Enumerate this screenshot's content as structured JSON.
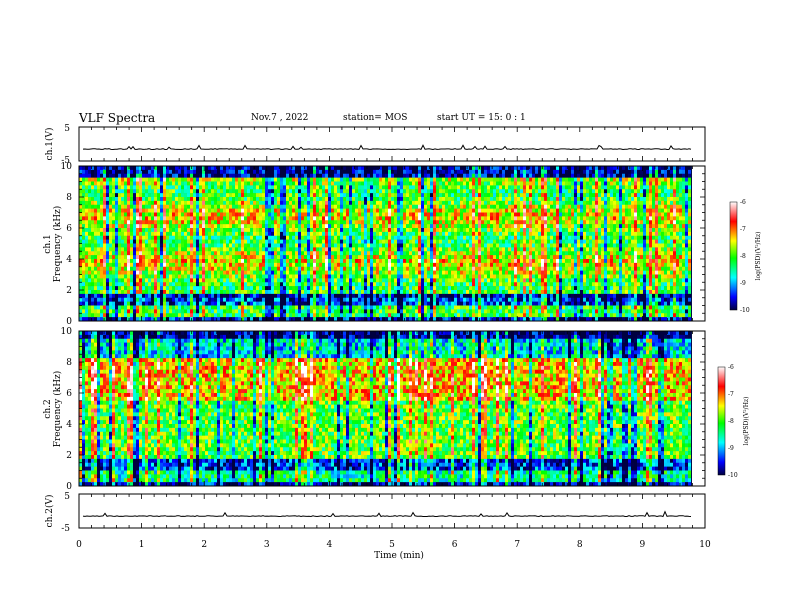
{
  "header": {
    "title": "VLF Spectra",
    "date": "Nov.7 , 2022",
    "station": "station= MOS",
    "start": "start UT =  15: 0 : 1"
  },
  "chart_data": [
    {
      "type": "line",
      "panel": "ch1-waveform",
      "ylabel": "ch.1(V)",
      "ylim": [
        -5,
        5
      ],
      "yticks": [
        "5",
        "-5"
      ],
      "xlim": [
        0,
        10
      ],
      "series": [
        {
          "values_approx": "flat trace near -1.5 V with small spikes"
        }
      ]
    },
    {
      "type": "heatmap",
      "panel": "ch1-spectrogram",
      "ylabel": "ch.1\nFrequency (kHz)",
      "ylabel_lines": [
        "ch.1",
        "Frequency (kHz)"
      ],
      "ylim": [
        0,
        10
      ],
      "yticks": [
        "0",
        "2",
        "4",
        "6",
        "8",
        "10"
      ],
      "xlim": [
        0,
        9.8
      ],
      "colorbar": {
        "label": "log(PSD)(V²/Hz)",
        "range": [
          -10,
          -6
        ],
        "ticks": [
          "-6",
          "-7",
          "-8",
          "-9",
          "-10"
        ]
      },
      "colors": [
        "#000040",
        "#0000ff",
        "#00ffff",
        "#00ff00",
        "#ffff00",
        "#ff0000",
        "#ffffff"
      ]
    },
    {
      "type": "heatmap",
      "panel": "ch2-spectrogram",
      "ylabel": "ch.2\nFrequency (kHz)",
      "ylabel_lines": [
        "ch.2",
        "Frequency (kHz)"
      ],
      "ylim": [
        0,
        10
      ],
      "yticks": [
        "0",
        "2",
        "4",
        "6",
        "8",
        "10"
      ],
      "xlim": [
        0,
        9.8
      ],
      "colorbar": {
        "label": "log(PSD)(V²/Hz)",
        "range": [
          -10,
          -6
        ],
        "ticks": [
          "-6",
          "-7",
          "-8",
          "-9",
          "-10"
        ]
      }
    },
    {
      "type": "line",
      "panel": "ch2-waveform",
      "ylabel": "ch.2(V)",
      "ylim": [
        -5,
        5
      ],
      "yticks": [
        "5",
        "-5"
      ],
      "xlim": [
        0,
        10
      ],
      "xlabel": "Time (min)",
      "xticks": [
        "0",
        "1",
        "2",
        "3",
        "4",
        "5",
        "6",
        "7",
        "8",
        "9",
        "10"
      ],
      "series": [
        {
          "values_approx": "flat trace near -1.5 V with small spikes"
        }
      ]
    }
  ]
}
